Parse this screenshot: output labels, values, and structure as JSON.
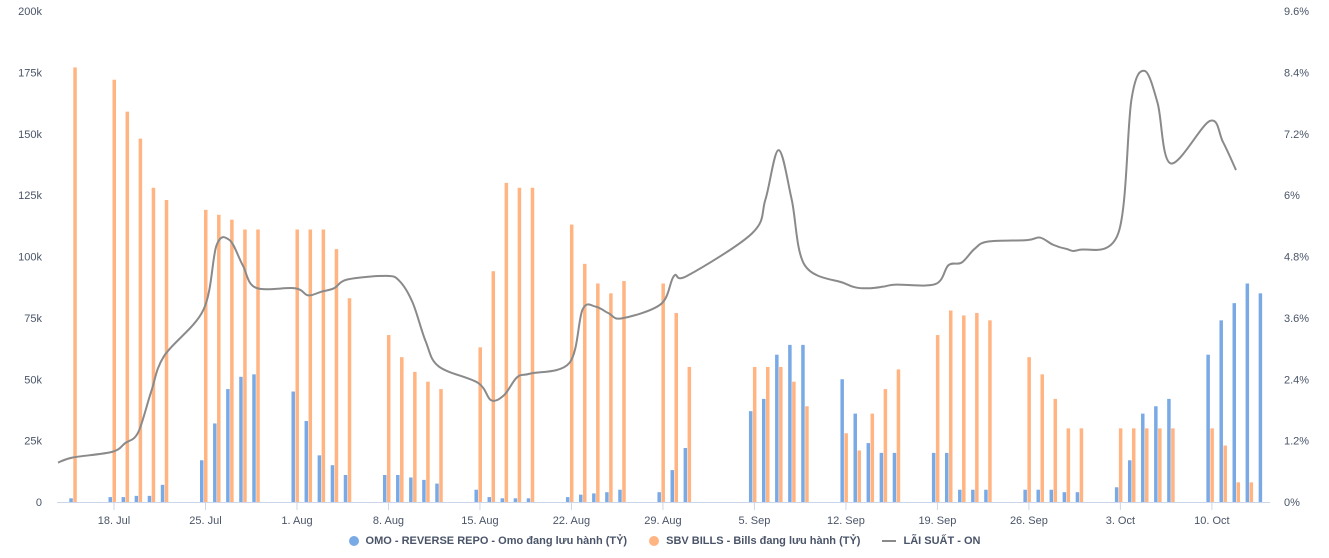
{
  "colors": {
    "omo": "#7aaae6",
    "bills": "#ffb482",
    "rate": "#8a8a8a",
    "axis": "#ccd6eb",
    "text": "#4a5468"
  },
  "chart_data": {
    "type": "bar+line",
    "left_axis": {
      "ylim": [
        0,
        200000
      ],
      "ticks": [
        "0",
        "25k",
        "50k",
        "75k",
        "100k",
        "125k",
        "150k",
        "175k",
        "200k"
      ]
    },
    "right_axis": {
      "ylim": [
        0,
        9.6
      ],
      "ticks": [
        "0%",
        "1.2%",
        "2.4%",
        "3.6%",
        "4.8%",
        "6%",
        "7.2%",
        "8.4%",
        "9.6%"
      ]
    },
    "x_ticks": [
      "18. Jul",
      "25. Jul",
      "1. Aug",
      "8. Aug",
      "15. Aug",
      "22. Aug",
      "29. Aug",
      "5. Sep",
      "12. Sep",
      "19. Sep",
      "26. Sep",
      "3. Oct",
      "10. Oct"
    ],
    "xlim": [
      "14 Jul",
      "15 Oct"
    ],
    "grid": false,
    "legend_placement": "bottom",
    "series": [
      {
        "name": "OMO - REVERSE REPO - Omo đang lưu hành (TỶ)",
        "type": "bar",
        "axis": "left",
        "points": [
          [
            "15 Jul",
            1500
          ],
          [
            "18 Jul",
            2000
          ],
          [
            "19 Jul",
            2000
          ],
          [
            "20 Jul",
            2500
          ],
          [
            "21 Jul",
            2500
          ],
          [
            "22 Jul",
            7000
          ],
          [
            "25 Jul",
            17000
          ],
          [
            "26 Jul",
            32000
          ],
          [
            "27 Jul",
            46000
          ],
          [
            "28 Jul",
            51000
          ],
          [
            "29 Jul",
            52000
          ],
          [
            "1 Aug",
            45000
          ],
          [
            "2 Aug",
            33000
          ],
          [
            "3 Aug",
            19000
          ],
          [
            "4 Aug",
            15000
          ],
          [
            "5 Aug",
            11000
          ],
          [
            "8 Aug",
            11000
          ],
          [
            "9 Aug",
            11000
          ],
          [
            "10 Aug",
            10000
          ],
          [
            "11 Aug",
            9000
          ],
          [
            "12 Aug",
            7500
          ],
          [
            "15 Aug",
            5000
          ],
          [
            "16 Aug",
            2000
          ],
          [
            "17 Aug",
            1500
          ],
          [
            "18 Aug",
            1500
          ],
          [
            "19 Aug",
            1500
          ],
          [
            "22 Aug",
            2000
          ],
          [
            "23 Aug",
            3000
          ],
          [
            "24 Aug",
            3500
          ],
          [
            "25 Aug",
            4000
          ],
          [
            "26 Aug",
            5000
          ],
          [
            "29 Aug",
            4000
          ],
          [
            "30 Aug",
            13000
          ],
          [
            "31 Aug",
            22000
          ],
          [
            "5 Sep",
            37000
          ],
          [
            "6 Sep",
            42000
          ],
          [
            "7 Sep",
            60000
          ],
          [
            "8 Sep",
            64000
          ],
          [
            "9 Sep",
            64000
          ],
          [
            "12 Sep",
            50000
          ],
          [
            "13 Sep",
            36000
          ],
          [
            "14 Sep",
            24000
          ],
          [
            "15 Sep",
            20000
          ],
          [
            "16 Sep",
            20000
          ],
          [
            "19 Sep",
            20000
          ],
          [
            "20 Sep",
            20000
          ],
          [
            "21 Sep",
            5000
          ],
          [
            "22 Sep",
            5000
          ],
          [
            "23 Sep",
            5000
          ],
          [
            "26 Sep",
            5000
          ],
          [
            "27 Sep",
            5000
          ],
          [
            "28 Sep",
            5000
          ],
          [
            "29 Sep",
            4000
          ],
          [
            "30 Sep",
            4000
          ],
          [
            "3 Oct",
            6000
          ],
          [
            "4 Oct",
            17000
          ],
          [
            "5 Oct",
            36000
          ],
          [
            "6 Oct",
            39000
          ],
          [
            "7 Oct",
            42000
          ],
          [
            "10 Oct",
            60000
          ],
          [
            "11 Oct",
            74000
          ],
          [
            "12 Oct",
            81000
          ],
          [
            "13 Oct",
            89000
          ],
          [
            "14 Oct",
            85000
          ]
        ]
      },
      {
        "name": "SBV BILLS - Bills đang lưu hành (TỶ)",
        "type": "bar",
        "axis": "left",
        "points": [
          [
            "15 Jul",
            177000
          ],
          [
            "18 Jul",
            172000
          ],
          [
            "19 Jul",
            159000
          ],
          [
            "20 Jul",
            148000
          ],
          [
            "21 Jul",
            128000
          ],
          [
            "22 Jul",
            123000
          ],
          [
            "25 Jul",
            119000
          ],
          [
            "26 Jul",
            117000
          ],
          [
            "27 Jul",
            115000
          ],
          [
            "28 Jul",
            111000
          ],
          [
            "29 Jul",
            111000
          ],
          [
            "1 Aug",
            111000
          ],
          [
            "2 Aug",
            111000
          ],
          [
            "3 Aug",
            111000
          ],
          [
            "4 Aug",
            103000
          ],
          [
            "5 Aug",
            83000
          ],
          [
            "8 Aug",
            68000
          ],
          [
            "9 Aug",
            59000
          ],
          [
            "10 Aug",
            53000
          ],
          [
            "11 Aug",
            49000
          ],
          [
            "12 Aug",
            46000
          ],
          [
            "15 Aug",
            63000
          ],
          [
            "16 Aug",
            94000
          ],
          [
            "17 Aug",
            130000
          ],
          [
            "18 Aug",
            128000
          ],
          [
            "19 Aug",
            128000
          ],
          [
            "22 Aug",
            113000
          ],
          [
            "23 Aug",
            97000
          ],
          [
            "24 Aug",
            89000
          ],
          [
            "25 Aug",
            85000
          ],
          [
            "26 Aug",
            90000
          ],
          [
            "29 Aug",
            89000
          ],
          [
            "30 Aug",
            77000
          ],
          [
            "31 Aug",
            55000
          ],
          [
            "5 Sep",
            55000
          ],
          [
            "6 Sep",
            55000
          ],
          [
            "7 Sep",
            55000
          ],
          [
            "8 Sep",
            49000
          ],
          [
            "9 Sep",
            39000
          ],
          [
            "12 Sep",
            28000
          ],
          [
            "13 Sep",
            21000
          ],
          [
            "14 Sep",
            36000
          ],
          [
            "15 Sep",
            46000
          ],
          [
            "16 Sep",
            54000
          ],
          [
            "19 Sep",
            68000
          ],
          [
            "20 Sep",
            78000
          ],
          [
            "21 Sep",
            76000
          ],
          [
            "22 Sep",
            77000
          ],
          [
            "23 Sep",
            74000
          ],
          [
            "26 Sep",
            59000
          ],
          [
            "27 Sep",
            52000
          ],
          [
            "28 Sep",
            42000
          ],
          [
            "29 Sep",
            30000
          ],
          [
            "30 Sep",
            30000
          ],
          [
            "3 Oct",
            30000
          ],
          [
            "4 Oct",
            30000
          ],
          [
            "5 Oct",
            30000
          ],
          [
            "6 Oct",
            30000
          ],
          [
            "7 Oct",
            30000
          ],
          [
            "10 Oct",
            30000
          ],
          [
            "11 Oct",
            23000
          ],
          [
            "12 Oct",
            8000
          ],
          [
            "13 Oct",
            8000
          ]
        ]
      },
      {
        "name": "LÃI SUẤT - ON",
        "type": "line",
        "axis": "right",
        "points": [
          [
            "14 Jul",
            0.77
          ],
          [
            "15 Jul",
            0.87
          ],
          [
            "18 Jul",
            0.98
          ],
          [
            "19 Jul",
            1.15
          ],
          [
            "20 Jul",
            1.36
          ],
          [
            "21 Jul",
            2.16
          ],
          [
            "22 Jul",
            2.86
          ],
          [
            "25 Jul",
            3.76
          ],
          [
            "26 Jul",
            5.02
          ],
          [
            "27 Jul",
            5.12
          ],
          [
            "28 Jul",
            4.63
          ],
          [
            "29 Jul",
            4.19
          ],
          [
            "1 Aug",
            4.18
          ],
          [
            "2 Aug",
            4.04
          ],
          [
            "3 Aug",
            4.11
          ],
          [
            "4 Aug",
            4.18
          ],
          [
            "5 Aug",
            4.35
          ],
          [
            "8 Aug",
            4.42
          ],
          [
            "9 Aug",
            4.32
          ],
          [
            "10 Aug",
            3.9
          ],
          [
            "11 Aug",
            3.14
          ],
          [
            "12 Aug",
            2.65
          ],
          [
            "15 Aug",
            2.33
          ],
          [
            "16 Aug",
            1.99
          ],
          [
            "17 Aug",
            2.09
          ],
          [
            "18 Aug",
            2.44
          ],
          [
            "19 Aug",
            2.51
          ],
          [
            "22 Aug",
            2.72
          ],
          [
            "23 Aug",
            3.76
          ],
          [
            "24 Aug",
            3.82
          ],
          [
            "25 Aug",
            3.69
          ],
          [
            "26 Aug",
            3.59
          ],
          [
            "29 Aug",
            3.87
          ],
          [
            "30 Aug",
            4.42
          ],
          [
            "31 Aug",
            4.42
          ],
          [
            "5 Sep",
            5.26
          ],
          [
            "6 Sep",
            5.92
          ],
          [
            "7 Sep",
            6.88
          ],
          [
            "8 Sep",
            5.92
          ],
          [
            "9 Sep",
            4.63
          ],
          [
            "12 Sep",
            4.28
          ],
          [
            "13 Sep",
            4.19
          ],
          [
            "14 Sep",
            4.18
          ],
          [
            "15 Sep",
            4.21
          ],
          [
            "16 Sep",
            4.25
          ],
          [
            "19 Sep",
            4.26
          ],
          [
            "20 Sep",
            4.63
          ],
          [
            "21 Sep",
            4.68
          ],
          [
            "22 Sep",
            4.95
          ],
          [
            "23 Sep",
            5.09
          ],
          [
            "26 Sep",
            5.12
          ],
          [
            "27 Sep",
            5.17
          ],
          [
            "28 Sep",
            5.03
          ],
          [
            "29 Sep",
            4.95
          ],
          [
            "30 Sep",
            4.93
          ],
          [
            "3 Oct",
            5.26
          ],
          [
            "4 Oct",
            7.87
          ],
          [
            "5 Oct",
            8.43
          ],
          [
            "6 Oct",
            7.8
          ],
          [
            "7 Oct",
            6.62
          ],
          [
            "10 Oct",
            7.45
          ],
          [
            "11 Oct",
            7.04
          ],
          [
            "12 Oct",
            6.49
          ]
        ]
      }
    ]
  }
}
